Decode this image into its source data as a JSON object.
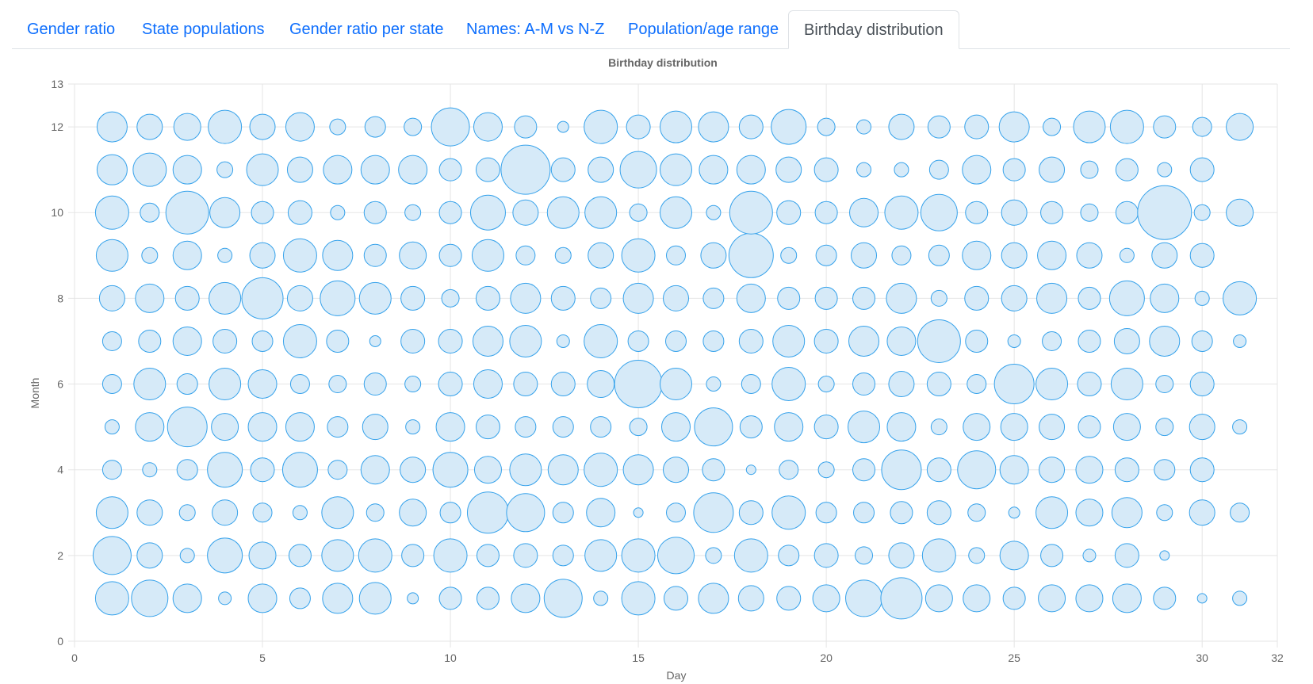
{
  "tabs": [
    {
      "label": "Gender ratio",
      "active": false
    },
    {
      "label": "State populations",
      "active": false
    },
    {
      "label": "Gender ratio per state",
      "active": false
    },
    {
      "label": "Names: A-M vs N-Z",
      "active": false
    },
    {
      "label": "Population/age range",
      "active": false
    },
    {
      "label": "Birthday distribution",
      "active": true
    }
  ],
  "colors": {
    "tab_link": "#0d6efd",
    "bubble_fill": "#d6eaf8",
    "bubble_stroke": "#36a2eb",
    "grid": "#e5e5e5",
    "axis_text": "#666666"
  },
  "chart_data": {
    "type": "scatter",
    "title": "Birthday distribution",
    "xlabel": "Day",
    "ylabel": "Month",
    "xlim": [
      0,
      32
    ],
    "ylim": [
      0,
      13
    ],
    "xticks": [
      "0",
      "5",
      "10",
      "15",
      "20",
      "25",
      "30",
      "32"
    ],
    "yticks": [
      "0",
      "2",
      "4",
      "6",
      "8",
      "10",
      "12",
      "13"
    ],
    "grid": true,
    "legend": "none",
    "days": [
      1,
      2,
      3,
      4,
      5,
      6,
      7,
      8,
      9,
      10,
      11,
      12,
      13,
      14,
      15,
      16,
      17,
      18,
      19,
      20,
      21,
      22,
      23,
      24,
      25,
      26,
      27,
      28,
      29,
      30,
      31
    ],
    "months": [
      1,
      2,
      3,
      4,
      5,
      6,
      7,
      8,
      9,
      10,
      11,
      12
    ],
    "relative_sizes": [
      [
        21,
        23,
        18,
        8,
        18,
        13,
        19,
        20,
        7,
        14,
        14,
        18,
        24,
        9,
        21,
        15,
        19,
        16,
        15,
        17,
        23,
        26,
        17,
        17,
        14,
        17,
        17,
        18,
        14,
        6,
        9
      ],
      [
        24,
        16,
        9,
        22,
        17,
        14,
        20,
        21,
        14,
        21,
        14,
        15,
        13,
        20,
        21,
        23,
        10,
        21,
        13,
        15,
        11,
        16,
        21,
        10,
        18,
        14,
        8,
        15,
        6,
        0,
        0
      ],
      [
        20,
        16,
        10,
        16,
        12,
        9,
        20,
        11,
        17,
        13,
        26,
        24,
        13,
        18,
        6,
        12,
        25,
        15,
        21,
        13,
        13,
        14,
        15,
        11,
        7,
        20,
        17,
        19,
        10,
        16,
        12
      ],
      [
        12,
        9,
        13,
        22,
        15,
        22,
        12,
        18,
        16,
        22,
        17,
        20,
        19,
        21,
        19,
        16,
        14,
        6,
        12,
        10,
        14,
        25,
        15,
        24,
        18,
        16,
        17,
        15,
        13,
        15,
        0
      ],
      [
        9,
        18,
        25,
        17,
        18,
        18,
        13,
        16,
        9,
        18,
        15,
        13,
        13,
        13,
        11,
        18,
        24,
        14,
        18,
        15,
        20,
        18,
        10,
        17,
        17,
        16,
        14,
        17,
        11,
        16,
        9
      ],
      [
        12,
        20,
        13,
        20,
        18,
        12,
        11,
        14,
        10,
        15,
        18,
        15,
        15,
        17,
        30,
        20,
        9,
        12,
        21,
        10,
        14,
        16,
        15,
        12,
        25,
        20,
        15,
        20,
        11,
        15,
        0
      ],
      [
        12,
        14,
        18,
        15,
        13,
        21,
        14,
        7,
        15,
        15,
        19,
        20,
        8,
        21,
        13,
        13,
        13,
        15,
        20,
        15,
        19,
        18,
        27,
        14,
        8,
        12,
        14,
        16,
        19,
        13,
        8
      ],
      [
        16,
        18,
        15,
        20,
        26,
        16,
        22,
        20,
        15,
        11,
        15,
        19,
        15,
        13,
        19,
        16,
        13,
        18,
        14,
        14,
        14,
        19,
        10,
        15,
        16,
        19,
        14,
        22,
        18,
        9,
        21
      ],
      [
        20,
        10,
        18,
        9,
        16,
        21,
        19,
        14,
        17,
        14,
        20,
        12,
        10,
        16,
        21,
        12,
        16,
        28,
        10,
        13,
        16,
        12,
        13,
        18,
        16,
        18,
        16,
        9,
        16,
        15,
        0
      ],
      [
        21,
        12,
        27,
        19,
        14,
        15,
        9,
        14,
        10,
        14,
        22,
        16,
        20,
        20,
        11,
        20,
        9,
        27,
        15,
        14,
        18,
        21,
        23,
        14,
        16,
        14,
        11,
        14,
        34,
        10,
        17
      ],
      [
        19,
        21,
        18,
        10,
        20,
        16,
        18,
        18,
        18,
        14,
        15,
        31,
        15,
        16,
        23,
        20,
        18,
        18,
        16,
        15,
        9,
        9,
        12,
        18,
        14,
        16,
        11,
        14,
        9,
        15,
        0
      ],
      [
        19,
        16,
        17,
        21,
        16,
        18,
        10,
        13,
        11,
        24,
        18,
        14,
        7,
        21,
        15,
        20,
        19,
        15,
        22,
        11,
        9,
        16,
        14,
        15,
        19,
        11,
        20,
        21,
        14,
        12,
        17
      ]
    ]
  }
}
